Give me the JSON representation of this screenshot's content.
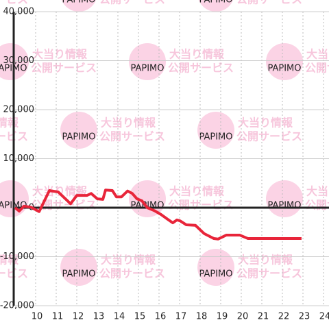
{
  "chart_data": {
    "type": "line",
    "watermark": {
      "brand": "PAPIMO",
      "line1": "大当り情報",
      "line2": "公開サービス"
    },
    "x": [
      9,
      9.2,
      9.43,
      9.77,
      10.17,
      10.67,
      11.1,
      11.7,
      12.0,
      12.5,
      12.7,
      13.0,
      13.27,
      13.4,
      13.73,
      13.93,
      14.17,
      14.47,
      14.7,
      14.93,
      15.17,
      15.43,
      15.77,
      16.1,
      16.43,
      16.67,
      16.87,
      17.03,
      17.33,
      17.77,
      18.2,
      18.67,
      18.87,
      19.27,
      19.93,
      20.33,
      22.93
    ],
    "series": [
      {
        "color": "#e8253a",
        "values": [
          0,
          -700,
          300,
          100,
          -800,
          3500,
          3200,
          800,
          2500,
          2500,
          2900,
          1800,
          1700,
          3600,
          3500,
          2200,
          2200,
          3400,
          2900,
          1800,
          1400,
          0,
          -600,
          -1400,
          -2400,
          -3100,
          -2500,
          -2700,
          -3500,
          -3600,
          -5300,
          -6300,
          -6400,
          -5600,
          -5600,
          -6300,
          -6300
        ]
      }
    ],
    "xlim": [
      9,
      24.3
    ],
    "xticks": [
      10,
      11,
      12,
      13,
      14,
      15,
      16,
      17,
      18,
      19,
      20,
      21,
      22,
      23,
      24
    ],
    "ylim": [
      -20000,
      40000
    ],
    "yticks": [
      {
        "value": -20000,
        "label": "-20,000"
      },
      {
        "value": -10000,
        "label": "-10,000"
      },
      0,
      {
        "value": 10000,
        "label": "10,000"
      },
      {
        "value": 20000,
        "label": "20,000"
      },
      {
        "value": 30000,
        "label": "30,000"
      },
      {
        "value": 40000,
        "label": "40,000"
      }
    ],
    "grid": true
  }
}
